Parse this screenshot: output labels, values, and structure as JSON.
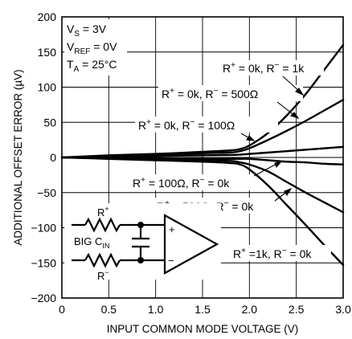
{
  "chart_data": {
    "type": "line",
    "title": "",
    "xlabel": "INPUT COMMON MODE VOLTAGE (V)",
    "ylabel": "ADDITIONAL OFFSET ERROR (µV)",
    "xlim": [
      0,
      3.0
    ],
    "ylim": [
      -200,
      200
    ],
    "grid": true,
    "x_ticks": [
      "0",
      "0.5",
      "1.0",
      "1.5",
      "2.0",
      "2.5",
      "3.0"
    ],
    "y_ticks": [
      "200",
      "150",
      "100",
      "50",
      "0",
      "−50",
      "−100",
      "−150",
      "−200"
    ],
    "conditions": [
      {
        "name": "V",
        "sub": "S",
        "value": " = 3V"
      },
      {
        "name": "V",
        "sub": "REF",
        "value": " = 0V"
      },
      {
        "name": "T",
        "sub": "A",
        "value": " = 25°C"
      }
    ],
    "series": [
      {
        "name": "R⁺ = 0k, R⁻ = 1k",
        "x": [
          0,
          0.5,
          1.0,
          1.5,
          1.8,
          1.9,
          2.0,
          2.2,
          2.4,
          2.6,
          2.8,
          3.0
        ],
        "y": [
          0,
          3,
          5,
          8,
          10,
          12,
          17,
          35,
          60,
          90,
          125,
          160
        ]
      },
      {
        "name": "R⁺ = 0k, R⁻ = 500Ω",
        "x": [
          0,
          0.5,
          1.0,
          1.5,
          1.8,
          1.9,
          2.0,
          2.2,
          2.4,
          2.6,
          2.8,
          3.0
        ],
        "y": [
          0,
          2,
          4,
          6,
          7,
          9,
          13,
          25,
          38,
          52,
          67,
          82
        ]
      },
      {
        "name": "R⁺ = 0k, R⁻ = 100Ω",
        "x": [
          0,
          0.5,
          1.0,
          1.5,
          1.8,
          1.9,
          2.0,
          2.2,
          2.4,
          2.6,
          2.8,
          3.0
        ],
        "y": [
          0,
          1,
          2,
          3,
          3.5,
          4,
          5,
          7,
          9,
          11,
          13,
          15
        ]
      },
      {
        "name": "R⁺ = 100Ω, R⁻ = 0k",
        "x": [
          0,
          0.5,
          1.0,
          1.5,
          1.8,
          1.9,
          2.0,
          2.2,
          2.4,
          2.6,
          2.8,
          3.0
        ],
        "y": [
          0,
          -1,
          -1,
          -2,
          -2,
          -2,
          -2,
          -4,
          -6,
          -7,
          -9,
          -10
        ]
      },
      {
        "name": "R⁺ = 500Ω, R⁻ = 0k",
        "x": [
          0,
          0.5,
          1.0,
          1.5,
          1.8,
          1.9,
          2.0,
          2.2,
          2.4,
          2.6,
          2.8,
          3.0
        ],
        "y": [
          0,
          -1,
          -2,
          -4,
          -5,
          -7,
          -10,
          -20,
          -35,
          -50,
          -64,
          -78
        ]
      },
      {
        "name": "R⁺ =1k, R⁻ = 0k",
        "x": [
          0,
          0.5,
          1.0,
          1.5,
          1.8,
          1.9,
          2.0,
          2.2,
          2.4,
          2.6,
          2.8,
          3.0
        ],
        "y": [
          0,
          -2,
          -4,
          -6,
          -8,
          -10,
          -17,
          -40,
          -68,
          -96,
          -125,
          -153
        ]
      }
    ],
    "annotations": [
      {
        "r_plus": "0k",
        "r_minus": "1k",
        "sep_plus": " = ",
        "sep_minus": " = ",
        "suffix_plus": ", "
      },
      {
        "r_plus": "0k",
        "r_minus": "500Ω",
        "sep_plus": " = ",
        "sep_minus": " = ",
        "suffix_plus": ", "
      },
      {
        "r_plus": "0k",
        "r_minus": "100Ω",
        "sep_plus": " = ",
        "sep_minus": " = ",
        "suffix_plus": ", "
      },
      {
        "r_plus": "100Ω",
        "r_minus": "0k",
        "sep_plus": " = ",
        "sep_minus": " = ",
        "suffix_plus": ", "
      },
      {
        "r_plus": "500Ω",
        "r_minus": "0k",
        "sep_plus": " = ",
        "sep_minus": " = ",
        "suffix_plus": ", "
      },
      {
        "r_plus": "1k",
        "r_minus": "0k",
        "sep_plus": " =",
        "sep_minus": " = ",
        "suffix_plus": ", "
      }
    ],
    "schematic": {
      "r_plus_label": "R",
      "r_plus_sup": "+",
      "r_minus_label": "R",
      "r_minus_sup": "−",
      "cap_label": "BIG C",
      "cap_sub": "IN",
      "pin_plus": "+",
      "pin_minus": "−"
    }
  }
}
